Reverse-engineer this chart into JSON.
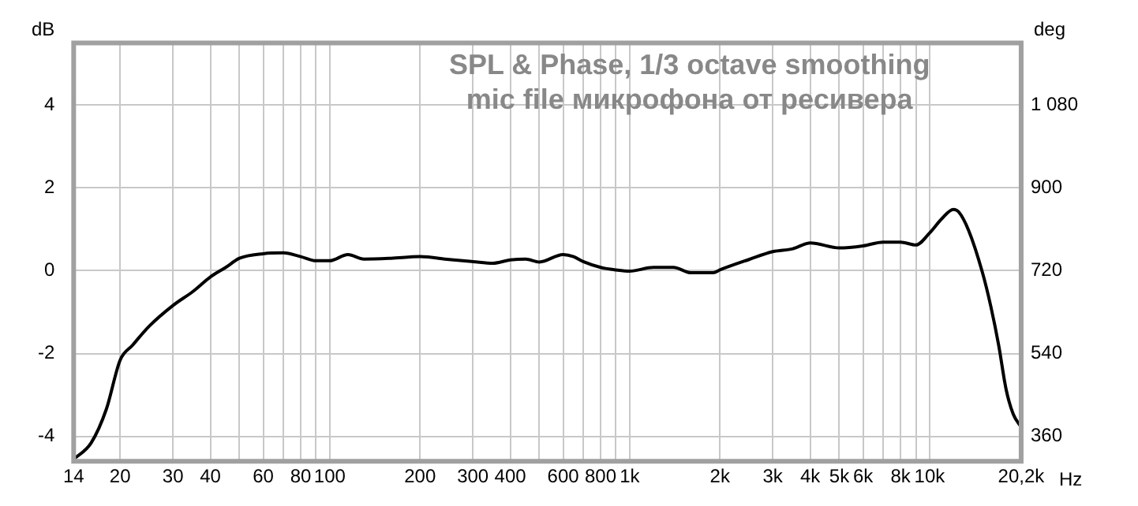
{
  "chart_data": {
    "type": "line",
    "title": "SPL & Phase, 1/3 octave smoothing",
    "subtitle": "mic file микрофона от ресивера",
    "xlabel": "Hz",
    "ylabel": "dB",
    "y2label": "deg",
    "log": "x",
    "grid": true,
    "legend": false,
    "marker": "none",
    "line_style": "solid",
    "x": [
      14,
      16,
      18,
      20,
      22,
      25,
      30,
      35,
      40,
      45,
      50,
      60,
      70,
      80,
      90,
      100,
      115,
      130,
      160,
      200,
      250,
      300,
      350,
      400,
      450,
      500,
      600,
      650,
      700,
      800,
      900,
      1000,
      1200,
      1400,
      1600,
      1900,
      2000,
      2500,
      3000,
      3500,
      4000,
      5000,
      6000,
      7000,
      8000,
      9000,
      10000,
      11000,
      12000,
      12500,
      13500,
      15000,
      16000,
      17000,
      18000,
      19000,
      20200
    ],
    "series": [
      {
        "color": "#000000",
        "values": [
          -4.55,
          -4.16,
          -3.34,
          -2.16,
          -1.8,
          -1.34,
          -0.84,
          -0.5,
          -0.15,
          0.08,
          0.3,
          0.41,
          0.43,
          0.34,
          0.24,
          0.24,
          0.39,
          0.28,
          0.3,
          0.34,
          0.27,
          0.22,
          0.18,
          0.26,
          0.28,
          0.21,
          0.39,
          0.34,
          0.22,
          0.08,
          0.02,
          -0.01,
          0.08,
          0.08,
          -0.05,
          -0.05,
          0.02,
          0.27,
          0.46,
          0.53,
          0.67,
          0.55,
          0.6,
          0.69,
          0.69,
          0.62,
          0.91,
          1.26,
          1.48,
          1.42,
          0.97,
          -0.04,
          -0.86,
          -1.8,
          -2.87,
          -3.46,
          -3.78
        ]
      }
    ],
    "xlim": [
      14,
      20200
    ],
    "xticks": [
      14,
      20,
      30,
      40,
      {
        "value": 50,
        "label": null
      },
      60,
      {
        "value": 70,
        "label": null
      },
      80,
      {
        "value": 90,
        "label": null
      },
      100,
      200,
      300,
      400,
      {
        "value": 500,
        "label": null
      },
      600,
      {
        "value": 700,
        "label": null
      },
      800,
      {
        "value": 900,
        "label": null
      },
      {
        "value": 1000,
        "label": "1k"
      },
      {
        "value": 2000,
        "label": "2k"
      },
      {
        "value": 3000,
        "label": "3k"
      },
      {
        "value": 4000,
        "label": "4k"
      },
      {
        "value": 5000,
        "label": "5k"
      },
      {
        "value": 6000,
        "label": "6k"
      },
      {
        "value": 7000,
        "label": null
      },
      {
        "value": 8000,
        "label": "8k"
      },
      {
        "value": 9000,
        "label": null
      },
      {
        "value": 10000,
        "label": "10k"
      },
      {
        "value": 20200,
        "label": "20,2k"
      }
    ],
    "ylim": [
      -4.6,
      5.5
    ],
    "yticks": [
      -4,
      -2,
      0,
      2,
      4
    ],
    "y2lim": [
      306,
      1215
    ],
    "y2ticks": [
      360,
      540,
      720,
      900,
      {
        "value": 1080,
        "label": "1 080"
      }
    ]
  }
}
